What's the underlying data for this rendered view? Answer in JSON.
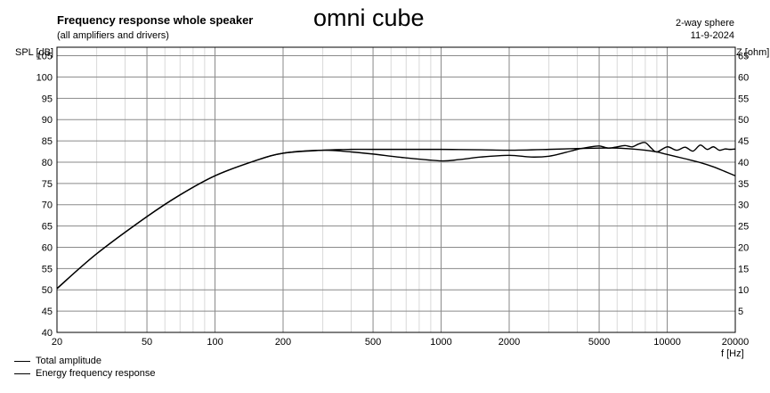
{
  "chart_data": {
    "type": "line",
    "title": "Frequency response whole speaker",
    "subtitle": "(all amplifiers and drivers)",
    "annotation": "omni cube",
    "info": [
      "2-way sphere",
      "11-9-2024"
    ],
    "ylabel": "SPL [dB]",
    "y2label": "Z [ohm]",
    "xlabel": "f [Hz]",
    "xscale": "log",
    "xlim": [
      20,
      20000
    ],
    "ylim": [
      40,
      107
    ],
    "y2lim": [
      0,
      67
    ],
    "grid": true,
    "legend_position": "bottom-left",
    "x_ticks": [
      20,
      50,
      100,
      200,
      500,
      1000,
      2000,
      5000,
      10000,
      20000
    ],
    "y_ticks": [
      40,
      45,
      50,
      55,
      60,
      65,
      70,
      75,
      80,
      85,
      90,
      95,
      100,
      105
    ],
    "y2_ticks": [
      5,
      10,
      15,
      20,
      25,
      30,
      35,
      40,
      45,
      50,
      55,
      60,
      65
    ],
    "series": [
      {
        "name": "Total amplitude",
        "color": "#000000",
        "x": [
          20,
          30,
          50,
          70,
          100,
          150,
          200,
          300,
          400,
          500,
          700,
          1000,
          1200,
          1500,
          2000,
          2500,
          3000,
          3500,
          4000,
          4500,
          5000,
          5500,
          6000,
          6500,
          7000,
          7500,
          8000,
          8500,
          9000,
          10000,
          11000,
          12000,
          13000,
          14000,
          15000,
          16000,
          17000,
          18000,
          19000,
          20000
        ],
        "y": [
          50.3,
          58.5,
          67.2,
          72.3,
          76.8,
          80.3,
          82.1,
          82.8,
          82.4,
          81.9,
          81.0,
          80.3,
          80.6,
          81.2,
          81.6,
          81.2,
          81.4,
          82.2,
          83.0,
          83.5,
          83.8,
          83.3,
          83.6,
          83.9,
          83.6,
          84.3,
          84.6,
          83.3,
          82.4,
          83.6,
          82.8,
          83.5,
          82.6,
          84.0,
          83.0,
          83.6,
          82.8,
          83.1,
          83.0,
          83.1
        ]
      },
      {
        "name": "Energy frequency response",
        "color": "#000000",
        "x": [
          20,
          30,
          50,
          70,
          100,
          150,
          200,
          300,
          400,
          500,
          700,
          1000,
          1500,
          2000,
          3000,
          4000,
          5000,
          6000,
          7000,
          8000,
          9000,
          10000,
          12000,
          14000,
          16000,
          18000,
          20000
        ],
        "y": [
          50.3,
          58.5,
          67.2,
          72.3,
          76.8,
          80.3,
          82.1,
          82.8,
          83.0,
          83.0,
          83.0,
          83.0,
          82.9,
          82.8,
          83.0,
          83.2,
          83.3,
          83.3,
          83.1,
          82.8,
          82.4,
          81.8,
          80.8,
          79.9,
          78.9,
          77.8,
          76.8
        ]
      }
    ]
  }
}
